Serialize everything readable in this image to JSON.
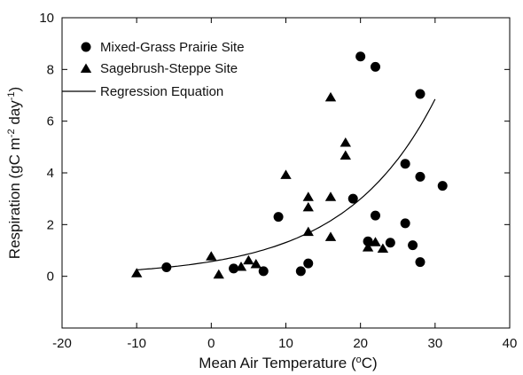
{
  "chart_data": {
    "type": "scatter",
    "xlabel": "Mean Air Temperature (°C)",
    "ylabel": "Respiration (gC m-2 day-1)",
    "xlim": [
      -20,
      40
    ],
    "ylim": [
      -2,
      10
    ],
    "xticks": [
      -20,
      -10,
      0,
      10,
      20,
      30,
      40
    ],
    "yticks": [
      0,
      2,
      4,
      6,
      8,
      10
    ],
    "grid": false,
    "legend_position": "top-left",
    "series": [
      {
        "name": "Mixed-Grass Prairie Site",
        "marker": "circle",
        "points": [
          [
            -6,
            0.35
          ],
          [
            3,
            0.3
          ],
          [
            7,
            0.2
          ],
          [
            9,
            2.3
          ],
          [
            12,
            0.2
          ],
          [
            13,
            0.5
          ],
          [
            19,
            3.0
          ],
          [
            20,
            8.5
          ],
          [
            21,
            1.35
          ],
          [
            22,
            2.35
          ],
          [
            22,
            8.1
          ],
          [
            24,
            1.3
          ],
          [
            26,
            2.05
          ],
          [
            26,
            4.35
          ],
          [
            27,
            1.2
          ],
          [
            28,
            0.55
          ],
          [
            28,
            3.85
          ],
          [
            28,
            7.05
          ],
          [
            31,
            3.5
          ]
        ]
      },
      {
        "name": "Sagebrush-Steppe Site",
        "marker": "triangle",
        "points": [
          [
            -10,
            0.1
          ],
          [
            0,
            0.75
          ],
          [
            1,
            0.05
          ],
          [
            4,
            0.35
          ],
          [
            5,
            0.6
          ],
          [
            6,
            0.45
          ],
          [
            10,
            3.9
          ],
          [
            13,
            1.7
          ],
          [
            13,
            2.65
          ],
          [
            13,
            3.05
          ],
          [
            16,
            1.5
          ],
          [
            16,
            3.05
          ],
          [
            16,
            6.9
          ],
          [
            18,
            4.65
          ],
          [
            18,
            5.15
          ],
          [
            21,
            1.1
          ],
          [
            22,
            1.3
          ],
          [
            23,
            1.05
          ]
        ]
      },
      {
        "name": "Regression Equation",
        "marker": "line",
        "curve": {
          "x_start": -10,
          "x_end": 30,
          "y_start": 0.25,
          "y_end": 6.85
        }
      }
    ]
  }
}
